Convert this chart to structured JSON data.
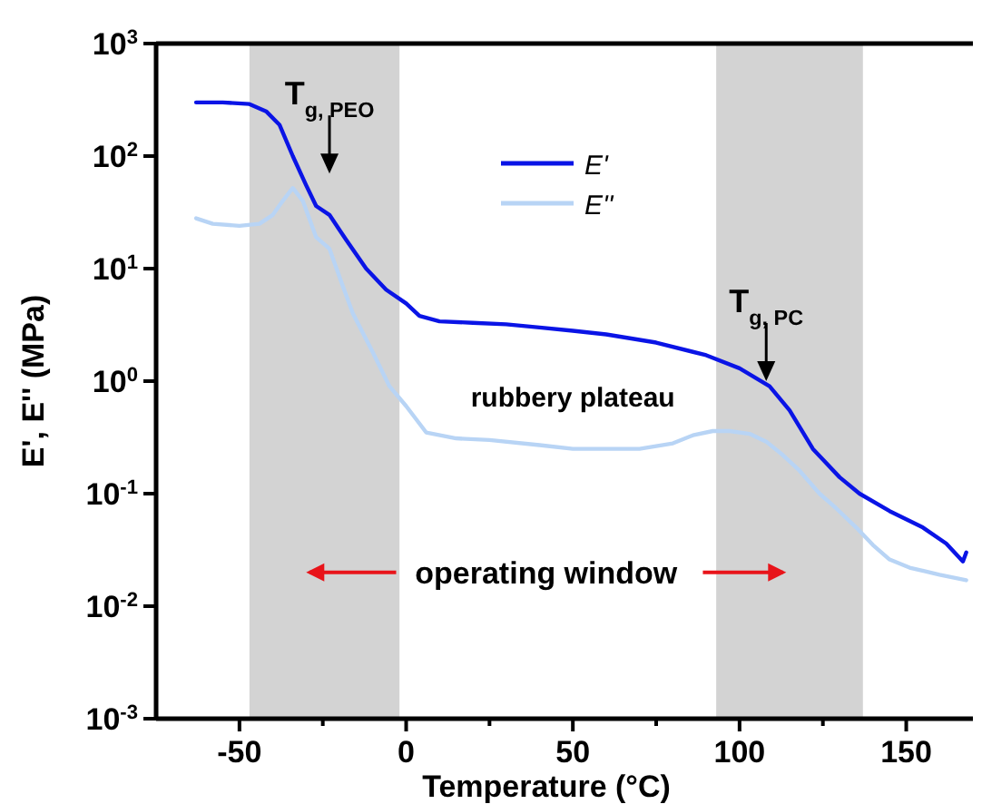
{
  "chart_data": {
    "type": "line",
    "xlabel": "Temperature (°C)",
    "ylabel": "E', E'' (MPa)",
    "log": "y",
    "xlim": [
      -75,
      170
    ],
    "xticks": [
      -50,
      0,
      50,
      100,
      150,
      {
        "value": -25,
        "label": null
      },
      {
        "value": 25,
        "label": null
      },
      {
        "value": 75,
        "label": null
      },
      {
        "value": 125,
        "label": null
      }
    ],
    "ylim": [
      0.001,
      1000
    ],
    "yticks": [
      {
        "value": 0.001,
        "label": "10$^{-3}$"
      },
      {
        "value": 0.01,
        "label": "10$^{-2}$"
      },
      {
        "value": 0.1,
        "label": "10$^{-1}$"
      },
      {
        "value": 1,
        "label": "10$^{0}$"
      },
      {
        "value": 10,
        "label": "10$^{1}$"
      },
      {
        "value": 100,
        "label": "10$^{2}$"
      },
      {
        "value": 1000,
        "label": "10$^{3}$"
      }
    ],
    "grid": false,
    "legend": "top",
    "line_style": "solid",
    "marker": "none",
    "bands": [
      {
        "axis": "x",
        "from": -47,
        "to": -2,
        "color": "#d3d3d3"
      },
      {
        "axis": "x",
        "from": 93,
        "to": 137,
        "color": "#d3d3d3"
      }
    ],
    "series": [
      {
        "name": "E'",
        "color": "#0a14e6",
        "x": [
          -63,
          -55,
          -47,
          -42,
          -38,
          -34,
          -30,
          -27,
          -23,
          -18,
          -12,
          -6,
          0,
          4,
          10,
          20,
          30,
          40,
          50,
          60,
          75,
          90,
          100,
          109,
          115,
          122,
          130,
          136,
          145,
          155,
          162,
          167,
          168
        ],
        "values": [
          300,
          300,
          290,
          250,
          190,
          100,
          55,
          36,
          30,
          18,
          10,
          6.5,
          4.9,
          3.8,
          3.4,
          3.3,
          3.2,
          3.0,
          2.8,
          2.6,
          2.2,
          1.7,
          1.3,
          0.9,
          0.55,
          0.25,
          0.14,
          0.1,
          0.07,
          0.05,
          0.036,
          0.025,
          0.03
        ]
      },
      {
        "name": "E''",
        "color": "#b8d4f5",
        "x": [
          -63,
          -58,
          -50,
          -44,
          -40,
          -37,
          -34,
          -31,
          -27,
          -23,
          -19,
          -16,
          -10,
          -5,
          0,
          6,
          15,
          25,
          40,
          50,
          60,
          70,
          80,
          86,
          92,
          97,
          103,
          108,
          113,
          118,
          124,
          129,
          135,
          140,
          145,
          151,
          160,
          168
        ],
        "values": [
          28,
          25,
          24,
          25,
          30,
          40,
          52,
          40,
          19,
          15,
          7,
          4,
          1.8,
          0.9,
          0.6,
          0.35,
          0.31,
          0.3,
          0.27,
          0.25,
          0.25,
          0.25,
          0.28,
          0.33,
          0.36,
          0.36,
          0.34,
          0.29,
          0.22,
          0.16,
          0.1,
          0.074,
          0.05,
          0.035,
          0.026,
          0.022,
          0.019,
          0.017
        ]
      }
    ],
    "annotations": [
      "T$_{g, PEO}$",
      "T$_{g, PC}$",
      "rubbery plateau",
      "operating window"
    ]
  }
}
